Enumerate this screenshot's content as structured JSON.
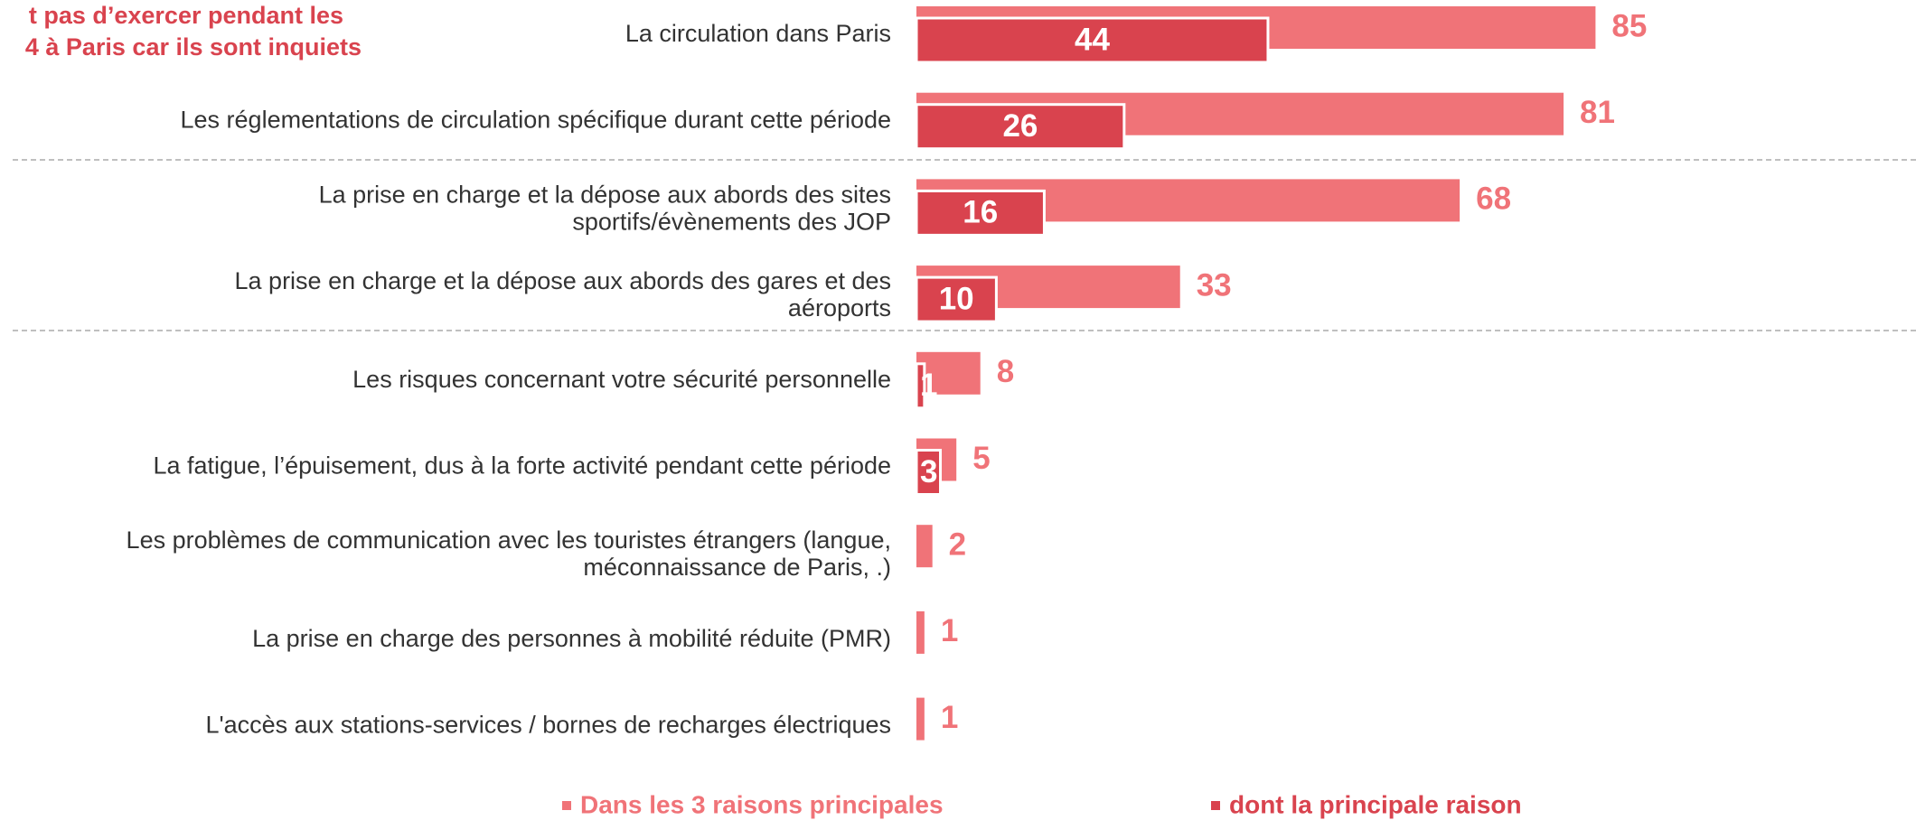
{
  "chart_data": {
    "type": "hbar_overlap",
    "title": [
      "t pas d’exercer pendant les",
      "4 à Paris car ils sont inquiets"
    ],
    "categories": [
      "La circulation dans Paris",
      "Les réglementations de circulation spécifique durant cette période",
      "La prise en charge et la dépose aux abords des sites\nsportifs/évènements des JOP",
      "La prise en charge et la dépose aux abords des gares et des\naéroports",
      "Les risques concernant votre sécurité personnelle",
      "La fatigue, l’épuisement, dus à la forte activité pendant cette période",
      "Les problèmes de communication avec les touristes étrangers (langue,\nméconnaissance de Paris, .)",
      "La prise en charge des personnes à mobilité réduite (PMR)",
      "L'accès aux stations-services / bornes de recharges électriques"
    ],
    "series": [
      {
        "name": "Dans les 3 raisons principales",
        "color": "#f07378",
        "values": [
          85,
          81,
          68,
          33,
          8,
          5,
          2,
          1,
          1
        ]
      },
      {
        "name": "dont la principale raison",
        "color": "#d9434e",
        "values": [
          44,
          26,
          16,
          10,
          1,
          3,
          null,
          null,
          null
        ]
      }
    ],
    "xlim": [
      0,
      100
    ]
  }
}
